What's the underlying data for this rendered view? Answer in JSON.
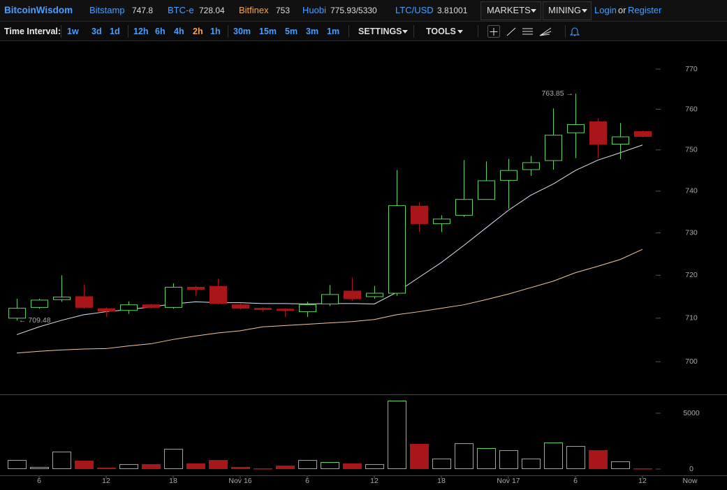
{
  "header": {
    "logo": "BitcoinWisdom",
    "exchanges": [
      {
        "name": "Bitstamp",
        "price": "747.8",
        "color": "#4a9eff"
      },
      {
        "name": "BTC-e",
        "price": "728.04",
        "color": "#4a9eff"
      },
      {
        "name": "Bitfinex",
        "price": "753",
        "color": "#f5a55a"
      },
      {
        "name": "Huobi",
        "price": "775.93/5330",
        "color": "#4a9eff"
      },
      {
        "name": "LTC/USD",
        "price": "3.81001",
        "color": "#4a9eff"
      }
    ],
    "markets": "MARKETS",
    "mining": "MINING",
    "login": "Login",
    "or": "or",
    "register": "Register"
  },
  "toolbar": {
    "label": "Time Interval:",
    "intervals": [
      {
        "label": "1w"
      },
      {
        "label": "3d"
      },
      {
        "label": "1d"
      },
      {
        "label": "12h"
      },
      {
        "label": "6h"
      },
      {
        "label": "4h"
      },
      {
        "label": "2h",
        "active": true
      },
      {
        "label": "1h"
      },
      {
        "label": "30m"
      },
      {
        "label": "15m"
      },
      {
        "label": "5m"
      },
      {
        "label": "3m"
      },
      {
        "label": "1m"
      }
    ],
    "settings": "SETTINGS",
    "tools": "TOOLS"
  },
  "chart_data": {
    "type": "candlestick",
    "categories": [
      null,
      "6",
      null,
      null,
      "12",
      null,
      null,
      "18",
      null,
      null,
      "Nov 16",
      null,
      null,
      "6",
      null,
      null,
      "12",
      null,
      null,
      "18",
      null,
      null,
      "Nov 17",
      null,
      null,
      "6",
      null,
      null,
      "12"
    ],
    "open": [
      710.0,
      712.5,
      714.3,
      715.0,
      712.2,
      711.8,
      713.1,
      712.5,
      717.2,
      717.4,
      713.1,
      712.3,
      712.1,
      711.5,
      713.3,
      716.3,
      715.0,
      715.8,
      736.4,
      732.2,
      734.2,
      738.0,
      742.6,
      745.2,
      747.4,
      754.2,
      756.9,
      751.4,
      754.5
    ],
    "high": [
      714.5,
      714.5,
      720.0,
      717.8,
      712.5,
      713.9,
      713.3,
      718.1,
      717.5,
      719.2,
      713.4,
      712.5,
      712.3,
      713.8,
      717.7,
      719.5,
      717.5,
      745.1,
      737.3,
      734.2,
      747.5,
      747.2,
      747.8,
      748.5,
      760.2,
      763.85,
      757.8,
      756.6,
      754.7
    ],
    "low": [
      709.48,
      712.2,
      713.8,
      712.2,
      710.3,
      711.0,
      712.3,
      712.2,
      715.2,
      713.2,
      712.0,
      711.5,
      710.3,
      710.3,
      712.8,
      714.0,
      714.5,
      715.2,
      730.2,
      730.2,
      733.8,
      738.0,
      735.8,
      743.7,
      745.2,
      748.0,
      748.0,
      747.7,
      753.1
    ],
    "close": [
      712.3,
      714.2,
      714.9,
      712.5,
      711.6,
      713.1,
      712.5,
      717.2,
      716.7,
      713.4,
      712.3,
      712.0,
      711.8,
      713.1,
      715.5,
      714.5,
      715.8,
      736.5,
      732.2,
      733.3,
      738.0,
      742.5,
      745.0,
      746.9,
      753.6,
      756.2,
      751.4,
      753.2,
      753.3
    ],
    "up_color": "#5fd35f",
    "down_color": "#a8161a",
    "log_scale": true,
    "ylim": [
      692.6,
      776.5
    ],
    "yticks": [
      700,
      710,
      720,
      730,
      740,
      750,
      760,
      770
    ],
    "series": [
      {
        "color": "#d6e6f5",
        "values": [
          706.2,
          708.0,
          709.5,
          710.8,
          711.5,
          712.0,
          712.6,
          713.3,
          713.8,
          713.6,
          713.6,
          713.4,
          713.4,
          713.3,
          713.4,
          713.4,
          713.3,
          716.0,
          719.5,
          723.0,
          727.0,
          731.2,
          735.4,
          739.0,
          741.7,
          745.0,
          747.5,
          749.3,
          751.2
        ]
      },
      {
        "color": "#f5c89a",
        "values": [
          702.0,
          702.4,
          702.7,
          702.9,
          703.0,
          703.6,
          704.1,
          705.1,
          705.9,
          706.6,
          707.1,
          708.0,
          708.3,
          708.6,
          708.9,
          709.2,
          709.7,
          710.8,
          711.5,
          712.3,
          713.1,
          714.3,
          715.6,
          717.1,
          718.6,
          720.6,
          722.1,
          723.7,
          726.1
        ]
      }
    ],
    "volume": {
      "values": [
        812,
        190,
        1560,
        750,
        125,
        440,
        440,
        1810,
        500,
        810,
        190,
        60,
        310,
        810,
        625,
        500,
        440,
        6125,
        2250,
        940,
        2310,
        1875,
        1690,
        940,
        2375,
        2060,
        1690,
        690,
        60
      ],
      "ylim": [
        0,
        6625
      ],
      "yticks": [
        0,
        5000
      ]
    },
    "high_label": "763.85 →",
    "low_label": "← 709.48",
    "now_label": "Now"
  }
}
